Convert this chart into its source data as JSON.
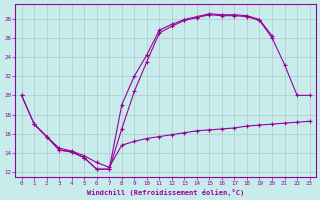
{
  "background_color": "#c8ecec",
  "grid_color": "#b0c8c8",
  "line_color": "#990099",
  "xlabel": "Windchill (Refroidissement éolien,°C)",
  "xlim": [
    -0.5,
    23.5
  ],
  "ylim": [
    11.5,
    29.5
  ],
  "yticks": [
    12,
    14,
    16,
    18,
    20,
    22,
    24,
    26,
    28
  ],
  "xticks": [
    0,
    1,
    2,
    3,
    4,
    5,
    6,
    7,
    8,
    9,
    10,
    11,
    12,
    13,
    14,
    15,
    16,
    17,
    18,
    19,
    20,
    21,
    22,
    23
  ],
  "line1_x": [
    0,
    1,
    2,
    3,
    4,
    5,
    6,
    7,
    8,
    9,
    10,
    11,
    12,
    13,
    14,
    15,
    16,
    17,
    18,
    19,
    20,
    21,
    22,
    23
  ],
  "line1_y": [
    20,
    17,
    15.7,
    14.3,
    14.1,
    13.5,
    12.3,
    12.3,
    16.5,
    20.4,
    23.5,
    26.5,
    27.2,
    27.8,
    28.1,
    28.4,
    28.3,
    28.3,
    28.2,
    27.8,
    26.0,
    23.2,
    20.0,
    20.0
  ],
  "line2_x": [
    0,
    1,
    2,
    3,
    4,
    5,
    6,
    7,
    8,
    9,
    10,
    11,
    12,
    13,
    14,
    15,
    16,
    17,
    18,
    19,
    20
  ],
  "line2_y": [
    20,
    17,
    15.7,
    14.3,
    14.1,
    13.5,
    12.3,
    12.3,
    19.0,
    22.0,
    24.2,
    26.8,
    27.4,
    27.9,
    28.2,
    28.5,
    28.4,
    28.4,
    28.3,
    27.9,
    26.2
  ],
  "line3_x": [
    1,
    2,
    3,
    4,
    5,
    6,
    7,
    8,
    9,
    10,
    11,
    12,
    13,
    14,
    15,
    16,
    17,
    18,
    19,
    20,
    21,
    22,
    23
  ],
  "line3_y": [
    17,
    15.7,
    14.5,
    14.2,
    13.7,
    13.0,
    12.5,
    14.8,
    15.2,
    15.5,
    15.7,
    15.9,
    16.1,
    16.3,
    16.4,
    16.5,
    16.6,
    16.8,
    16.9,
    17.0,
    17.1,
    17.2,
    17.3
  ]
}
